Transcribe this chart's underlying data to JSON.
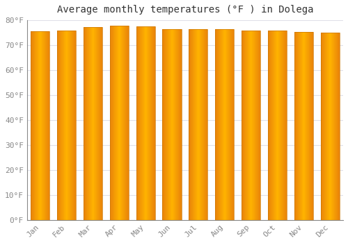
{
  "title": "Average monthly temperatures (°F ) in Dolega",
  "months": [
    "Jan",
    "Feb",
    "Mar",
    "Apr",
    "May",
    "Jun",
    "Jul",
    "Aug",
    "Sep",
    "Oct",
    "Nov",
    "Dec"
  ],
  "temperatures": [
    75.5,
    75.8,
    77.2,
    77.8,
    77.5,
    76.5,
    76.5,
    76.3,
    75.8,
    75.8,
    75.2,
    75.0
  ],
  "bar_color_left": "#E8820A",
  "bar_color_center": "#FFB300",
  "bar_color_right": "#E8820A",
  "bar_outline_color": "#CC7700",
  "background_color": "#FFFFFF",
  "plot_bg_color": "#FFFFFF",
  "grid_color": "#E0E0E8",
  "ylim": [
    0,
    80
  ],
  "yticks": [
    0,
    10,
    20,
    30,
    40,
    50,
    60,
    70,
    80
  ],
  "ytick_labels": [
    "0°F",
    "10°F",
    "20°F",
    "30°F",
    "40°F",
    "50°F",
    "60°F",
    "70°F",
    "80°F"
  ],
  "title_fontsize": 10,
  "tick_fontsize": 8,
  "tick_color": "#888888",
  "spine_color": "#888888",
  "bar_width": 0.72
}
